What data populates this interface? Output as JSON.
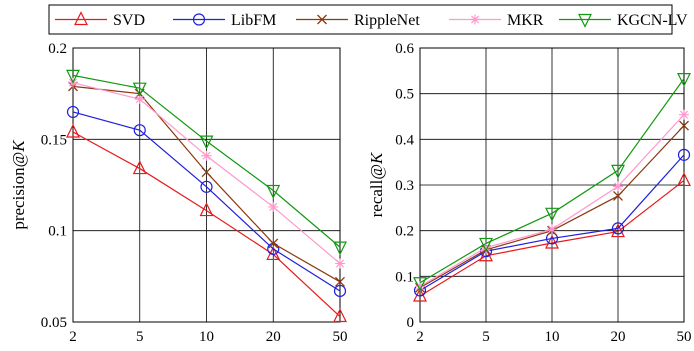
{
  "chart_data": [
    {
      "type": "line",
      "title": "",
      "xlabel": "",
      "ylabel": "precision@K",
      "ylabel_base": "precision@",
      "ylabel_var": "K",
      "categories": [
        "2",
        "5",
        "10",
        "20",
        "50"
      ],
      "ylim": [
        0.05,
        0.2
      ],
      "yticks": [
        0.05,
        0.1,
        0.15,
        0.2
      ],
      "ytick_labels": [
        "0.05",
        "0.1",
        "0.15",
        "0.2"
      ],
      "grid": true,
      "series": [
        {
          "name": "SVD",
          "values": [
            0.154,
            0.134,
            0.111,
            0.087,
            0.053
          ]
        },
        {
          "name": "LibFM",
          "values": [
            0.165,
            0.155,
            0.124,
            0.09,
            0.067
          ]
        },
        {
          "name": "RippleNet",
          "values": [
            0.179,
            0.175,
            0.132,
            0.093,
            0.072
          ]
        },
        {
          "name": "MKR",
          "values": [
            0.181,
            0.172,
            0.141,
            0.113,
            0.082
          ]
        },
        {
          "name": "KGCN-LV",
          "values": [
            0.185,
            0.178,
            0.149,
            0.122,
            0.091
          ]
        }
      ]
    },
    {
      "type": "line",
      "title": "",
      "xlabel": "",
      "ylabel": "recall@K",
      "ylabel_base": "recall@",
      "ylabel_var": "K",
      "categories": [
        "2",
        "5",
        "10",
        "20",
        "50"
      ],
      "ylim": [
        0,
        0.6
      ],
      "yticks": [
        0,
        0.1,
        0.2,
        0.3,
        0.4,
        0.5,
        0.6
      ],
      "ytick_labels": [
        "0",
        "0.1",
        "0.2",
        "0.3",
        "0.4",
        "0.5",
        "0.6"
      ],
      "grid": true,
      "series": [
        {
          "name": "SVD",
          "values": [
            0.057,
            0.145,
            0.173,
            0.198,
            0.31
          ]
        },
        {
          "name": "LibFM",
          "values": [
            0.069,
            0.155,
            0.183,
            0.205,
            0.366
          ]
        },
        {
          "name": "RippleNet",
          "values": [
            0.075,
            0.158,
            0.2,
            0.276,
            0.43
          ]
        },
        {
          "name": "MKR",
          "values": [
            0.078,
            0.163,
            0.203,
            0.297,
            0.454
          ]
        },
        {
          "name": "KGCN-LV",
          "values": [
            0.086,
            0.172,
            0.238,
            0.332,
            0.533
          ]
        }
      ]
    }
  ],
  "legend": {
    "placement": "top",
    "entries": [
      {
        "name": "SVD",
        "color": "#e8191b",
        "marker": "triangle-up-marker"
      },
      {
        "name": "LibFM",
        "color": "#1f1fe0",
        "marker": "circle-marker"
      },
      {
        "name": "RippleNet",
        "color": "#8b3a0f",
        "marker": "x-marker"
      },
      {
        "name": "MKR",
        "color": "#ff99cc",
        "marker": "star-marker"
      },
      {
        "name": "KGCN-LV",
        "color": "#119911",
        "marker": "triangle-down-marker"
      }
    ]
  }
}
